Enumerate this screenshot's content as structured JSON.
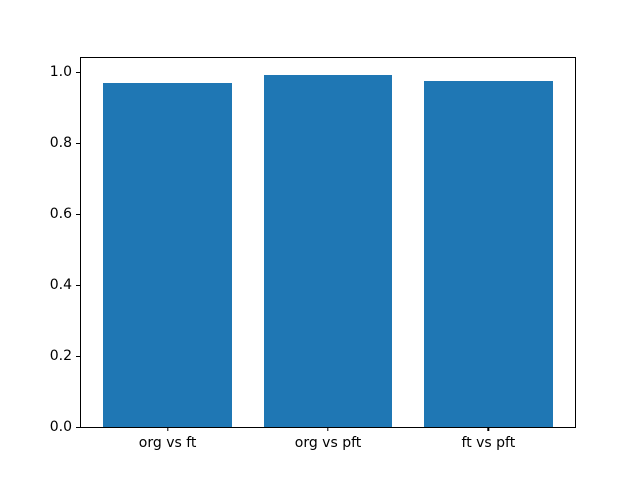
{
  "figure": {
    "background": "#ffffff",
    "spine_color": "#000000",
    "text_color": "#000000"
  },
  "chart_data": {
    "type": "bar",
    "title": "",
    "xlabel": "",
    "ylabel": "",
    "categories": [
      "org vs ft",
      "org vs pft",
      "ft vs pft"
    ],
    "values": [
      0.97,
      0.992,
      0.974
    ],
    "bar_color": "#1f77b4",
    "bar_width_fraction": 0.8,
    "xlim": [
      -0.54,
      2.54
    ],
    "ylim": [
      0,
      1.04
    ],
    "yticks": [
      0.0,
      0.2,
      0.4,
      0.6,
      0.8,
      1.0
    ],
    "ytick_labels": [
      "0.0",
      "0.2",
      "0.4",
      "0.6",
      "0.8",
      "1.0"
    ],
    "grid": false,
    "legend": null
  }
}
